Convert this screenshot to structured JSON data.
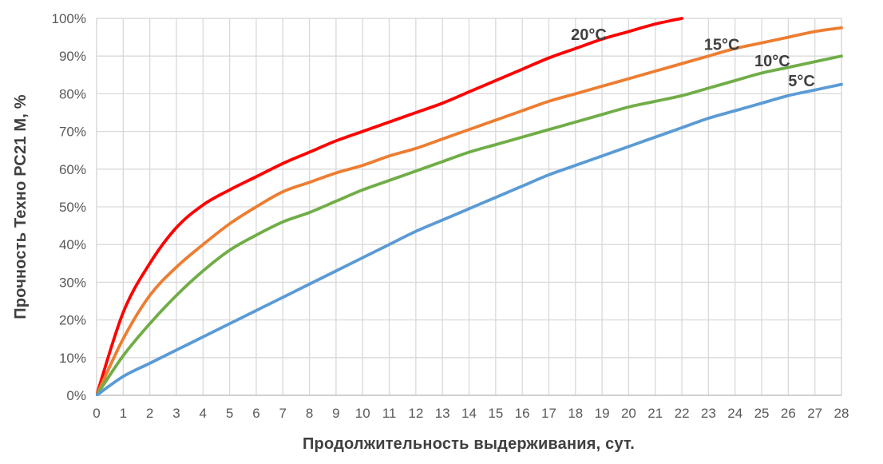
{
  "chart_data": {
    "type": "line",
    "xlabel": "Продолжительность выдерживания, сут.",
    "ylabel": "Прочность Техно РС21 М, %",
    "xlim": [
      0,
      28
    ],
    "ylim": [
      0,
      100
    ],
    "grid": true,
    "legend_position": "inline-annotations",
    "x_tick_labels": [
      "0",
      "1",
      "2",
      "3",
      "4",
      "5",
      "6",
      "7",
      "8",
      "9",
      "10",
      "11",
      "12",
      "13",
      "14",
      "15",
      "16",
      "17",
      "18",
      "19",
      "20",
      "21",
      "22",
      "23",
      "24",
      "25",
      "26",
      "27",
      "28"
    ],
    "y_tick_labels": [
      "0%",
      "10%",
      "20%",
      "30%",
      "40%",
      "50%",
      "60%",
      "70%",
      "80%",
      "90%",
      "100%"
    ],
    "colors": {
      "grid": "#d9d9d9",
      "axis": "#bfbfbf",
      "tick_text": "#595959",
      "title_text": "#404040"
    },
    "series": [
      {
        "name": "20°C",
        "color": "#ff0000",
        "x": [
          0,
          1,
          2,
          3,
          4,
          5,
          6,
          7,
          8,
          9,
          10,
          11,
          12,
          13,
          14,
          15,
          16,
          17,
          18,
          19,
          20,
          21,
          22
        ],
        "values": [
          0,
          22,
          35,
          44.5,
          50.5,
          54.5,
          58,
          61.5,
          64.5,
          67.5,
          70,
          72.5,
          75,
          77.5,
          80.5,
          83.5,
          86.5,
          89.5,
          92,
          94.5,
          96.5,
          98.5,
          100
        ],
        "label": {
          "text": "20°C",
          "x": 18.5,
          "y": 94.3
        }
      },
      {
        "name": "15°C",
        "color": "#ed7d31",
        "x": [
          0,
          1,
          2,
          3,
          4,
          5,
          6,
          7,
          8,
          9,
          10,
          11,
          12,
          13,
          14,
          15,
          16,
          17,
          18,
          19,
          20,
          21,
          22,
          23,
          24,
          25,
          26,
          27,
          28
        ],
        "values": [
          0,
          15,
          26.5,
          34,
          40,
          45.5,
          50,
          54,
          56.5,
          59,
          61,
          63.5,
          65.5,
          68,
          70.5,
          73,
          75.5,
          78,
          80,
          82,
          84,
          86,
          88,
          90,
          92,
          93.5,
          95,
          96.5,
          97.5
        ],
        "label": {
          "text": "15°C",
          "x": 23.5,
          "y": 91.6
        }
      },
      {
        "name": "10°C",
        "color": "#70ad47",
        "x": [
          0,
          1,
          2,
          3,
          4,
          5,
          6,
          7,
          8,
          9,
          10,
          11,
          12,
          13,
          14,
          15,
          16,
          17,
          18,
          19,
          20,
          21,
          22,
          23,
          24,
          25,
          26,
          27,
          28
        ],
        "values": [
          0,
          10.5,
          19,
          26.5,
          33,
          38.5,
          42.5,
          46,
          48.5,
          51.5,
          54.5,
          57,
          59.5,
          62,
          64.5,
          66.5,
          68.5,
          70.5,
          72.5,
          74.5,
          76.5,
          78,
          79.5,
          81.5,
          83.5,
          85.5,
          87,
          88.5,
          90
        ],
        "label": {
          "text": "10°C",
          "x": 25.4,
          "y": 87.3
        }
      },
      {
        "name": "5°C",
        "color": "#5b9bd5",
        "x": [
          0,
          1,
          2,
          3,
          4,
          5,
          6,
          7,
          8,
          9,
          10,
          11,
          12,
          13,
          14,
          15,
          16,
          17,
          18,
          19,
          20,
          21,
          22,
          23,
          24,
          25,
          26,
          27,
          28
        ],
        "values": [
          0,
          5,
          8.5,
          12,
          15.5,
          19,
          22.5,
          26,
          29.5,
          33,
          36.5,
          40,
          43.5,
          46.5,
          49.5,
          52.5,
          55.5,
          58.5,
          61,
          63.5,
          66,
          68.5,
          71,
          73.5,
          75.5,
          77.5,
          79.5,
          81,
          82.5
        ],
        "label": {
          "text": "5°C",
          "x": 26.5,
          "y": 82.0
        }
      }
    ]
  }
}
